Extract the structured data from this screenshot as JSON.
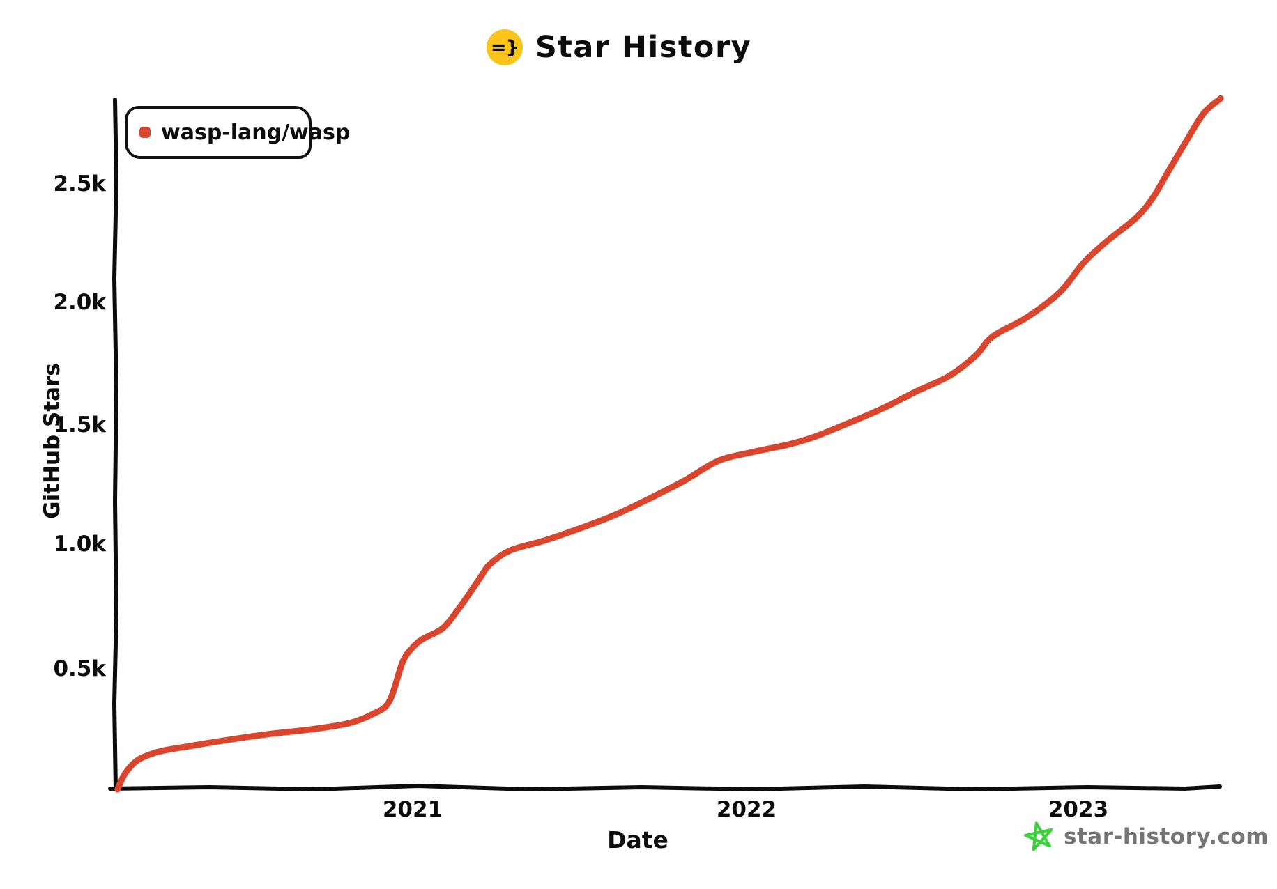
{
  "title": {
    "text": "Star History",
    "icon": "=}",
    "icon_bg": "#fac41a"
  },
  "legend": {
    "series_label": "wasp-lang/wasp",
    "marker_color": "#d9462d"
  },
  "watermark": {
    "text": "star-history.com",
    "star_color": "#3cd23c"
  },
  "chart_data": {
    "type": "line",
    "title": "Star History",
    "xlabel": "Date",
    "ylabel": "GitHub Stars",
    "grid": false,
    "legend_position": "top-left",
    "x_tick_labels": [
      "2021",
      "2022",
      "2023"
    ],
    "y_tick_labels_top_down": [
      "2.5k",
      "2.0k",
      "1.5k",
      "1.0k",
      "0.5k"
    ],
    "y_tick_values": [
      2500,
      2000,
      1500,
      1000,
      500
    ],
    "x_range_years": [
      2020.12,
      2023.41
    ],
    "y_range": [
      0,
      2880
    ],
    "series": [
      {
        "name": "wasp-lang/wasp",
        "color": "#d9462d",
        "points_year_stars": [
          [
            2020.12,
            0
          ],
          [
            2020.14,
            60
          ],
          [
            2020.17,
            110
          ],
          [
            2020.2,
            135
          ],
          [
            2020.25,
            158
          ],
          [
            2020.32,
            175
          ],
          [
            2020.43,
            200
          ],
          [
            2020.57,
            228
          ],
          [
            2020.7,
            248
          ],
          [
            2020.81,
            273
          ],
          [
            2020.88,
            310
          ],
          [
            2020.93,
            362
          ],
          [
            2020.97,
            525
          ],
          [
            2021.0,
            585
          ],
          [
            2021.03,
            620
          ],
          [
            2021.09,
            665
          ],
          [
            2021.14,
            750
          ],
          [
            2021.2,
            870
          ],
          [
            2021.23,
            928
          ],
          [
            2021.29,
            985
          ],
          [
            2021.39,
            1025
          ],
          [
            2021.49,
            1072
          ],
          [
            2021.6,
            1130
          ],
          [
            2021.7,
            1195
          ],
          [
            2021.81,
            1273
          ],
          [
            2021.91,
            1354
          ],
          [
            2022.01,
            1390
          ],
          [
            2022.12,
            1422
          ],
          [
            2022.2,
            1455
          ],
          [
            2022.29,
            1505
          ],
          [
            2022.4,
            1570
          ],
          [
            2022.5,
            1640
          ],
          [
            2022.6,
            1705
          ],
          [
            2022.68,
            1790
          ],
          [
            2022.73,
            1868
          ],
          [
            2022.83,
            1945
          ],
          [
            2022.93,
            2050
          ],
          [
            2023.0,
            2170
          ],
          [
            2023.07,
            2260
          ],
          [
            2023.16,
            2360
          ],
          [
            2023.21,
            2445
          ],
          [
            2023.25,
            2540
          ],
          [
            2023.31,
            2680
          ],
          [
            2023.36,
            2790
          ],
          [
            2023.41,
            2850
          ]
        ]
      }
    ]
  }
}
